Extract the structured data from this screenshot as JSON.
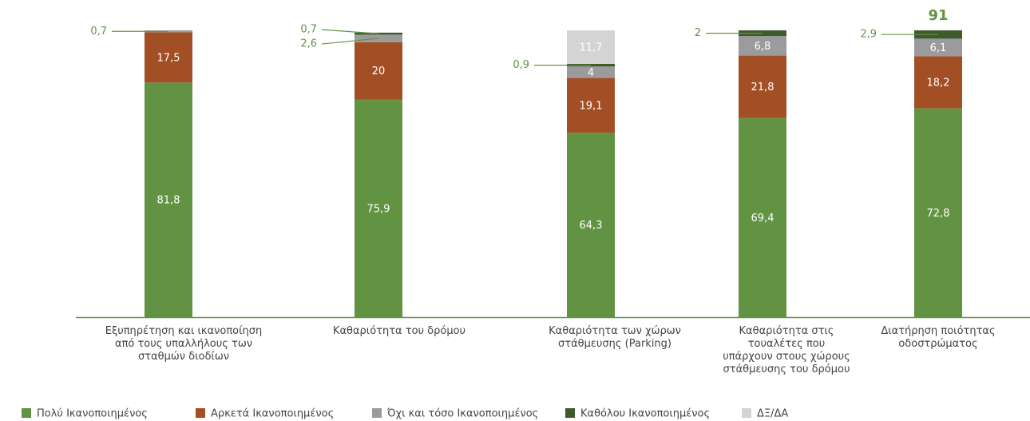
{
  "chart_data": {
    "type": "stacked_bar",
    "categories": [
      "Εξυπηρέτηση και ικανοποίηση\nαπό τους υπαλλήλους των\nσταθμών διοδίων",
      "Καθαριότητα του δρόμου",
      "Καθαριότητα των χώρων\nστάθμευσης (Parking)",
      "Καθαριότητα στις\nτουαλέτες που\nυπάρχουν στους χώρους\nστάθμευσης του δρόμου",
      "Διατήρηση ποιότητας\nοδοστρώματος"
    ],
    "series": [
      {
        "name": "Πολύ Ικανοποιημένος",
        "color": "#629342",
        "values": [
          81.8,
          75.9,
          64.3,
          69.4,
          72.8
        ],
        "value_labels": [
          "81,8",
          "75,9",
          "64,3",
          "69,4",
          "72,8"
        ]
      },
      {
        "name": "Αρκετά Ικανοποιημένος",
        "color": "#a34f26",
        "values": [
          17.5,
          20,
          19.1,
          21.8,
          18.2
        ],
        "value_labels": [
          "17,5",
          "20",
          "19,1",
          "21,8",
          "18,2"
        ]
      },
      {
        "name": "Όχι και τόσο Ικανοποιημένος",
        "color": "#9b9b9e",
        "values": [
          0.7,
          2.6,
          4,
          6.8,
          6.1
        ],
        "value_labels": [
          "0,7",
          "2,6",
          "4",
          "6,8",
          "6,1"
        ]
      },
      {
        "name": "Καθόλου Ικανοποιημένος",
        "color": "#3f5b2d",
        "values": [
          null,
          0.7,
          0.9,
          2,
          2.9
        ],
        "value_labels": [
          null,
          "0,7",
          "0,9",
          "2",
          "2,9"
        ]
      },
      {
        "name": "ΔΞ/ΔΑ",
        "color": "#d4d4d5",
        "values": [
          null,
          null,
          11.7,
          null,
          null
        ],
        "value_labels": [
          null,
          null,
          "11,7",
          null,
          null
        ]
      }
    ],
    "annotations": [
      {
        "text": "91",
        "category": 4
      }
    ],
    "ylim": [
      0,
      100
    ],
    "legend": "bottom"
  }
}
